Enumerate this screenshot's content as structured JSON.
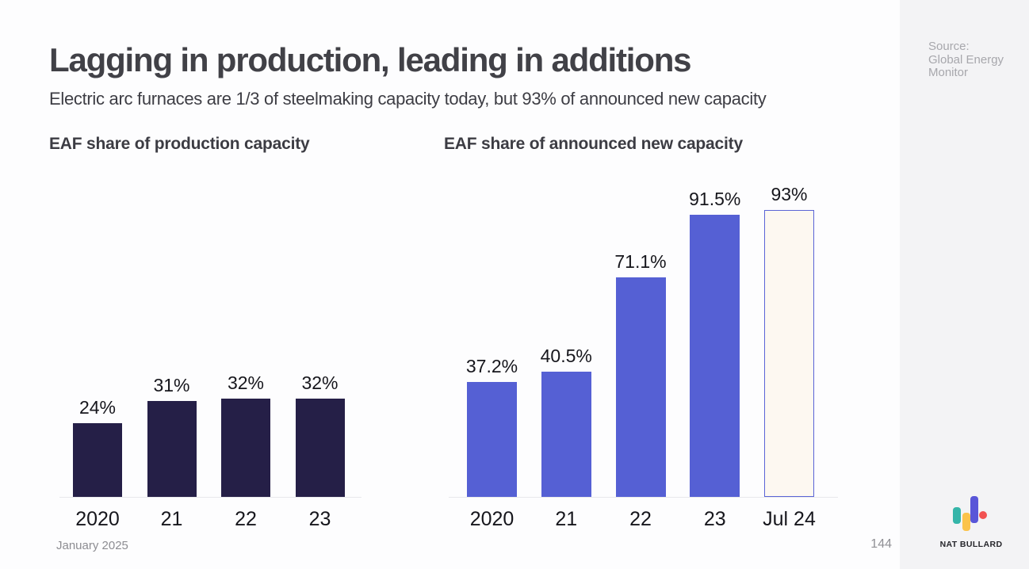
{
  "slide": {
    "title": "Lagging in production, leading in additions",
    "subtitle": "Electric arc furnaces are 1/3 of steelmaking capacity today, but 93% of announced new capacity",
    "footer_date": "January 2025",
    "page_number": "144"
  },
  "sidebar": {
    "source_lines": [
      "Source:",
      "Global Energy",
      "Monitor"
    ],
    "logo_text": "NAT BULLARD"
  },
  "chart_data": [
    {
      "type": "bar",
      "title": "EAF share of production capacity",
      "categories": [
        "2020",
        "21",
        "22",
        "23"
      ],
      "values": [
        24,
        31,
        32,
        32
      ],
      "value_labels": [
        "24%",
        "31%",
        "32%",
        "32%"
      ],
      "bar_color": "#251f47",
      "ylim": [
        0,
        100
      ],
      "grid": false,
      "legend": "none"
    },
    {
      "type": "bar",
      "title": "EAF share of announced new capacity",
      "categories": [
        "2020",
        "21",
        "22",
        "23",
        "Jul 24"
      ],
      "values": [
        37.2,
        40.5,
        71.1,
        91.5,
        93
      ],
      "value_labels": [
        "37.2%",
        "40.5%",
        "71.1%",
        "91.5%",
        "93%"
      ],
      "bar_color": "#5560d4",
      "highlight_last_bar": {
        "fill": "#fdf8f1",
        "border": "#5b65d6"
      },
      "ylim": [
        0,
        100
      ],
      "grid": false,
      "legend": "none"
    }
  ],
  "colors": {
    "background": "#fdfdfe",
    "sidebar_background": "#f3f3f5",
    "axis_line": "#e8e8eb",
    "title_text": "#414147",
    "label_text": "#16161c",
    "muted_text": "#8f8f94",
    "source_text": "#a7a7ac",
    "logo_teal": "#35b5a9",
    "logo_yellow": "#fbc34b",
    "logo_purple": "#5956d8",
    "logo_red": "#f25252"
  }
}
